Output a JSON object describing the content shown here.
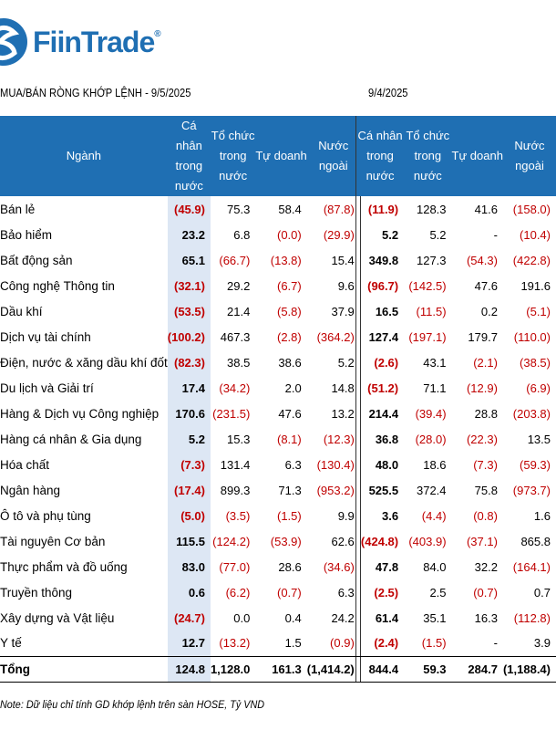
{
  "brand": {
    "name": "FiinTrade",
    "reg": "®"
  },
  "left_title": "MUA/BÁN RÒNG KHỚP LỆNH - 9/5/2025",
  "right_title": "9/4/2025",
  "headers_left": [
    "Ngành",
    "Cá nhân trong nước",
    "Tổ chức trong nước",
    "Tự doanh",
    "Nước ngoài"
  ],
  "headers_right": [
    "Cá nhân trong nước",
    "Tổ chức trong nước",
    "Tự doanh",
    "Nước ngoài"
  ],
  "rows": [
    {
      "sector": "Bán lẻ",
      "l": [
        "(45.9)",
        "75.3",
        "58.4",
        "(87.8)"
      ],
      "r": [
        "(11.9)",
        "128.3",
        "41.6",
        "(158.0)"
      ]
    },
    {
      "sector": "Bảo hiểm",
      "l": [
        "23.2",
        "6.8",
        "(0.0)",
        "(29.9)"
      ],
      "r": [
        "5.2",
        "5.2",
        "-",
        "(10.4)"
      ]
    },
    {
      "sector": "Bất động sản",
      "l": [
        "65.1",
        "(66.7)",
        "(13.8)",
        "15.4"
      ],
      "r": [
        "349.8",
        "127.3",
        "(54.3)",
        "(422.8)"
      ]
    },
    {
      "sector": "Công nghệ Thông tin",
      "l": [
        "(32.1)",
        "29.2",
        "(6.7)",
        "9.6"
      ],
      "r": [
        "(96.7)",
        "(142.5)",
        "47.6",
        "191.6"
      ]
    },
    {
      "sector": "Dầu khí",
      "l": [
        "(53.5)",
        "21.4",
        "(5.8)",
        "37.9"
      ],
      "r": [
        "16.5",
        "(11.5)",
        "0.2",
        "(5.1)"
      ]
    },
    {
      "sector": "Dịch vụ tài chính",
      "l": [
        "(100.2)",
        "467.3",
        "(2.8)",
        "(364.2)"
      ],
      "r": [
        "127.4",
        "(197.1)",
        "179.7",
        "(110.0)"
      ]
    },
    {
      "sector": "Điện, nước & xăng dầu khí đốt",
      "l": [
        "(82.3)",
        "38.5",
        "38.6",
        "5.2"
      ],
      "r": [
        "(2.6)",
        "43.1",
        "(2.1)",
        "(38.5)"
      ]
    },
    {
      "sector": "Du lịch và Giải trí",
      "l": [
        "17.4",
        "(34.2)",
        "2.0",
        "14.8"
      ],
      "r": [
        "(51.2)",
        "71.1",
        "(12.9)",
        "(6.9)"
      ]
    },
    {
      "sector": "Hàng & Dịch vụ Công nghiệp",
      "l": [
        "170.6",
        "(231.5)",
        "47.6",
        "13.2"
      ],
      "r": [
        "214.4",
        "(39.4)",
        "28.8",
        "(203.8)"
      ]
    },
    {
      "sector": "Hàng cá nhân & Gia dụng",
      "l": [
        "5.2",
        "15.3",
        "(8.1)",
        "(12.3)"
      ],
      "r": [
        "36.8",
        "(28.0)",
        "(22.3)",
        "13.5"
      ]
    },
    {
      "sector": "Hóa chất",
      "l": [
        "(7.3)",
        "131.4",
        "6.3",
        "(130.4)"
      ],
      "r": [
        "48.0",
        "18.6",
        "(7.3)",
        "(59.3)"
      ]
    },
    {
      "sector": "Ngân hàng",
      "l": [
        "(17.4)",
        "899.3",
        "71.3",
        "(953.2)"
      ],
      "r": [
        "525.5",
        "372.4",
        "75.8",
        "(973.7)"
      ]
    },
    {
      "sector": "Ô tô và phụ tùng",
      "l": [
        "(5.0)",
        "(3.5)",
        "(1.5)",
        "9.9"
      ],
      "r": [
        "3.6",
        "(4.4)",
        "(0.8)",
        "1.6"
      ]
    },
    {
      "sector": "Tài nguyên Cơ bản",
      "l": [
        "115.5",
        "(124.2)",
        "(53.9)",
        "62.6"
      ],
      "r": [
        "(424.8)",
        "(403.9)",
        "(37.1)",
        "865.8"
      ]
    },
    {
      "sector": "Thực phẩm và đồ uống",
      "l": [
        "83.0",
        "(77.0)",
        "28.6",
        "(34.6)"
      ],
      "r": [
        "47.8",
        "84.0",
        "32.2",
        "(164.1)"
      ]
    },
    {
      "sector": "Truyền thông",
      "l": [
        "0.6",
        "(6.2)",
        "(0.7)",
        "6.3"
      ],
      "r": [
        "(2.5)",
        "2.5",
        "(0.7)",
        "0.7"
      ]
    },
    {
      "sector": "Xây dựng và Vật liệu",
      "l": [
        "(24.7)",
        "0.0",
        "0.4",
        "24.2"
      ],
      "r": [
        "61.4",
        "35.1",
        "16.3",
        "(112.8)"
      ]
    },
    {
      "sector": "Y tế",
      "l": [
        "12.7",
        "(13.2)",
        "1.5",
        "(0.9)"
      ],
      "r": [
        "(2.4)",
        "(1.5)",
        "-",
        "3.9"
      ]
    }
  ],
  "total": {
    "sector": "Tổng",
    "l": [
      "124.8",
      "1,128.0",
      "161.3",
      "(1,414.2)"
    ],
    "r": [
      "844.4",
      "59.3",
      "284.7",
      "(1,188.4)"
    ]
  },
  "note": "Note: Dữ liệu chỉ tính GD khớp lệnh trên sàn HOSE, Tỷ VND",
  "colors": {
    "header_bg": "#1f6fb3",
    "highlight": "#dde7f4",
    "negative": "#c00000"
  }
}
